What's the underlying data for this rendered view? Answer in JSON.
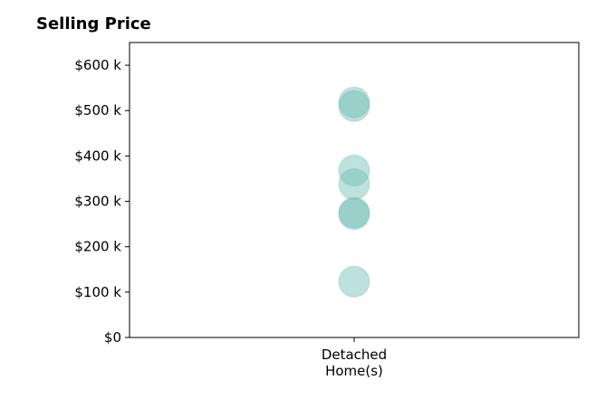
{
  "chart_data": {
    "type": "scatter",
    "title": "Selling Price",
    "xlabel": "",
    "ylabel": "",
    "categories": [
      "Detached\nHome(s)"
    ],
    "ylim": [
      0,
      650000
    ],
    "yticks": [
      0,
      100000,
      200000,
      300000,
      400000,
      500000,
      600000
    ],
    "ytick_labels": [
      "$0",
      "$100 k",
      "$200 k",
      "$300 k",
      "$400 k",
      "$500 k",
      "$600 k"
    ],
    "grid": false,
    "series": [
      {
        "category": "Detached\nHome(s)",
        "color": "#6dbdb1",
        "values": [
          518000,
          510000,
          368000,
          338000,
          275000,
          272000,
          123000
        ]
      }
    ]
  }
}
